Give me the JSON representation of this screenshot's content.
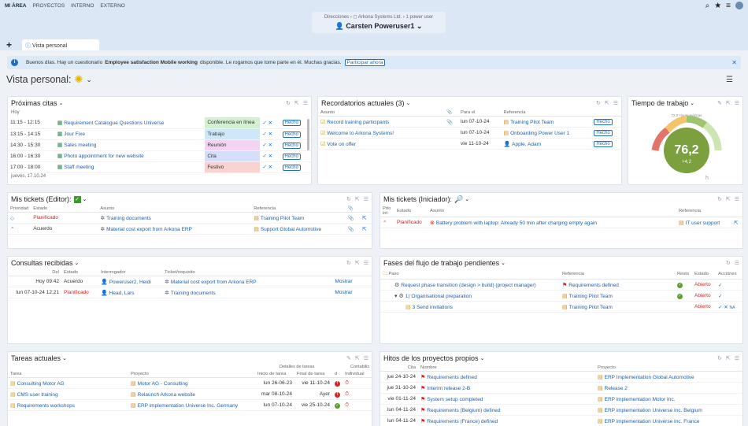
{
  "topnav": {
    "items": [
      "MI ÁREA",
      "PROYECTOS",
      "INTERNO",
      "EXTERNO"
    ],
    "breadcrumb": "Direcciones  ›  ◻ Arkona Systems Ltd.  ›  1 power user",
    "user_name": "Carsten Poweruser1"
  },
  "tabs": {
    "add": "+",
    "active_tab": "Vista personal"
  },
  "banner": {
    "pre": "Buenos días. Hay un cuestionario",
    "bold": "Employee satisfaction Mobile working",
    "post": "disponible. Le rogamos que tome parte en él. Muchas gracias.",
    "button": "Participar ahora"
  },
  "page": {
    "title": "Vista personal:"
  },
  "citas": {
    "title": "Próximas citas",
    "day_label": "Hoy",
    "rows": [
      {
        "time": "11:15 - 12:15",
        "subject": "Requirement Catalogue Questions Universe",
        "type": "Conferencia en línea",
        "type_color": "#d3f0d0",
        "action": "Hecho"
      },
      {
        "time": "13:15 - 14:15",
        "subject": "Jour Fixe",
        "type": "Trabajo",
        "type_color": "#cfe8f7",
        "action": "Hecho"
      },
      {
        "time": "14:30 - 15:30",
        "subject": "Sales meeting",
        "type": "Reunión",
        "type_color": "#f5d3f3",
        "action": "Hecho"
      },
      {
        "time": "16:00 - 16:30",
        "subject": "Photo appointment for new website",
        "type": "Cita",
        "type_color": "#d6dff9",
        "action": "Hecho"
      },
      {
        "time": "17:00 - 18:00",
        "subject": "Staff meeting",
        "type": "Festivo",
        "type_color": "#f9d3cf",
        "action": "Hecho"
      }
    ],
    "next_day": "jueves, 17.10.24"
  },
  "recordatorios": {
    "title": "Recordatorios actuales (3)",
    "headers": [
      "Asunto",
      "Para el",
      "Referencia"
    ],
    "rows": [
      {
        "subject": "Record training participants",
        "date": "lun 07-10-24",
        "ref": "Training Pilot Team",
        "action": "Hecho"
      },
      {
        "subject": "Welcome to Arkona Systems!",
        "date": "lun 07-10-24",
        "ref": "Onboarding Power User 1",
        "action": "Hecho"
      },
      {
        "subject": "Vote on offer",
        "date": "vie 11-10-24",
        "ref": "Apple, Adam",
        "action": "Hecho"
      }
    ]
  },
  "tiempo": {
    "title": "Tiempo de trabajo",
    "target_label": "72,0 Horas teóricas",
    "value": "76,2",
    "delta": "+4,2",
    "unit": "h",
    "fraction": 0.76
  },
  "tickets_editor": {
    "title": "Mis tickets (Editor):",
    "headers": [
      "Prioridad",
      "Estado",
      "Asunto",
      "Referencia"
    ],
    "rows": [
      {
        "status": "Planificado",
        "subject": "Training documents",
        "ref": "Training Pilot Team"
      },
      {
        "status": "Acuerdo",
        "subject": "Material cost export from Arkona ERP",
        "ref": "Support Global Automotive"
      }
    ]
  },
  "tickets_iniciador": {
    "title": "Mis tickets (Iniciador):",
    "headers": [
      "Prio int",
      "Estado",
      "Asunto",
      "Referencia"
    ],
    "rows": [
      {
        "status": "Planificado",
        "subject": "Battery problem with laptop: Already 50 min after charging empty again",
        "ref": "IT user support"
      }
    ]
  },
  "consultas": {
    "title": "Consultas recibidas",
    "headers": [
      "Del",
      "Estado",
      "Interrogador",
      "Ticket/requisito"
    ],
    "rows": [
      {
        "date": "Hoy 09:42",
        "status": "Acuerdo",
        "who": "Poweruser2, Heidi",
        "ticket": "Material cost export from Arkona ERP",
        "action": "Mostrar"
      },
      {
        "date": "lun 07-10-24 12:21",
        "status": "Planificado",
        "who": "Head, Lars",
        "ticket": "Training documents",
        "action": "Mostrar"
      }
    ]
  },
  "fases": {
    "title": "Fases del flujo de trabajo pendientes",
    "headers": [
      "Paso",
      "Referencia",
      "Resto",
      "Estado",
      "Acciones"
    ],
    "rows": [
      {
        "step": "Request phase transition (design > build) (project manager)",
        "ref": "Requirements defined",
        "status": "Abierto"
      },
      {
        "step": "1) Organisational preparation",
        "ref": "Training Pilot Team",
        "status": "Abierto"
      },
      {
        "step": "3 Send invitations",
        "ref": "Training Pilot Team",
        "status": "Abierto",
        "na": "NA"
      }
    ]
  },
  "tareas": {
    "title": "Tareas actuales",
    "group_label": "Detalles de tareas",
    "group_label2": "Contabiliz",
    "headers": [
      "Tarea",
      "Proyecto",
      "Inicio de tarea",
      "Final de tarea",
      "d",
      "Individual"
    ],
    "rows": [
      {
        "task": "Consulting Motor AG",
        "project": "Motor AG - Consulting",
        "start": "lun 26-06-23",
        "end": "vie 11-10-24"
      },
      {
        "task": "CMS user training",
        "project": "Relaunch Arkona website",
        "start": "mar 08-10-24",
        "end": "Ayer"
      },
      {
        "task": "Requirements workshops",
        "project": "ERP implementation Universe Inc. Germany",
        "start": "lun 07-10-24",
        "end": "vie 25-10-24"
      }
    ]
  },
  "hitos": {
    "title": "Hitos de los proyectos propios",
    "headers": [
      "Cita",
      "Nombre",
      "Proyecto"
    ],
    "rows": [
      {
        "date": "jue 24-10-24",
        "name": "Requirements defined",
        "project": "ERP Implementation Global Automotive"
      },
      {
        "date": "jue 31-10-24",
        "name": "Interim release 2-B",
        "project": "Release 2"
      },
      {
        "date": "vie 01-11-24",
        "name": "System setup completed",
        "project": "ERP implementation Motor Inc."
      },
      {
        "date": "lun 04-11-24",
        "name": "Requirements (Belgium) defined",
        "project": "ERP implementation Universe Inc. Belgium"
      },
      {
        "date": "lun 04-11-24",
        "name": "Requirements (France) defined",
        "project": "ERP implementation Universe Inc. France"
      }
    ]
  }
}
